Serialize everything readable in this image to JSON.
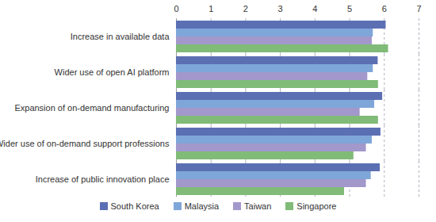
{
  "chart_data": {
    "type": "bar",
    "orientation": "horizontal",
    "grid": true,
    "legend": "bottom",
    "categories": [
      "Increase in available data",
      "Wider use of open AI platform",
      "Expansion of on-demand manufacturing",
      "Wider use of on-demand support professions",
      "Increase of public innovation place"
    ],
    "series": [
      {
        "name": "South Korea",
        "color": "#5b6fb3",
        "values": [
          6.05,
          5.82,
          5.95,
          5.9,
          5.88
        ]
      },
      {
        "name": "Malaysia",
        "color": "#7fa6d9",
        "values": [
          5.68,
          5.68,
          5.72,
          5.65,
          5.62
        ]
      },
      {
        "name": "Taiwan",
        "color": "#a298cb",
        "values": [
          5.65,
          5.52,
          5.3,
          5.48,
          5.48
        ]
      },
      {
        "name": "Singapore",
        "color": "#80bb78",
        "values": [
          6.12,
          5.83,
          5.83,
          5.12,
          4.85
        ]
      }
    ],
    "xlim": [
      0,
      7
    ],
    "xticks": [
      0,
      1,
      2,
      3,
      4,
      5,
      6,
      7
    ]
  }
}
